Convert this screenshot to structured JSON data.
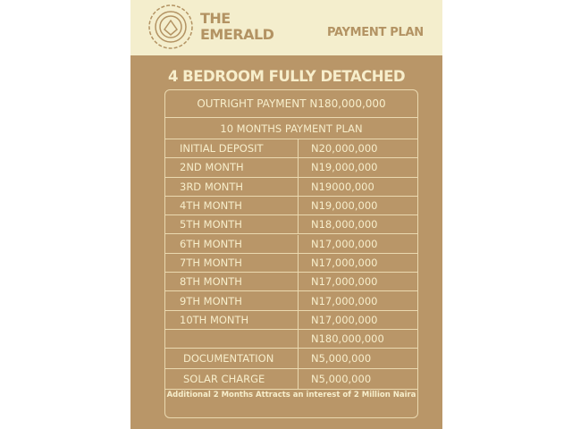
{
  "header": {
    "brand_line1": "THE",
    "brand_line2": "EMERALD",
    "plan_label": "PAYMENT PLAN"
  },
  "title": "4 BEDROOM FULLY DETACHED",
  "outright": "OUTRIGHT PAYMENT N180,000,000",
  "plan_heading": "10 MONTHS PAYMENT PLAN",
  "rows": [
    {
      "label": "INITIAL DEPOSIT",
      "amount": "N20,000,000"
    },
    {
      "label": "2ND MONTH",
      "amount": "N19,000,000"
    },
    {
      "label": "3RD MONTH",
      "amount": "N19000,000"
    },
    {
      "label": "4TH MONTH",
      "amount": "N19,000,000"
    },
    {
      "label": "5TH MONTH",
      "amount": "N18,000,000"
    },
    {
      "label": "6TH MONTH",
      "amount": "N17,000,000"
    },
    {
      "label": "7TH MONTH",
      "amount": "N17,000,000"
    },
    {
      "label": "8TH MONTH",
      "amount": "N17,000,000"
    },
    {
      "label": "9TH MONTH",
      "amount": "N17,000,000"
    },
    {
      "label": "10TH MONTH",
      "amount": "N17,000,000"
    },
    {
      "label": "",
      "amount": "N180,000,000"
    },
    {
      "label": "DOCUMENTATION",
      "amount": "N5,000,000"
    },
    {
      "label": "SOLAR CHARGE",
      "amount": "N5,000,000"
    }
  ],
  "footnote": "Additional 2 Months Attracts an interest of 2 Million Naira",
  "colors": {
    "header_bg": "#f4eecd",
    "body_bg": "#b99668",
    "text": "#f7eecb",
    "brand": "#b39363"
  }
}
